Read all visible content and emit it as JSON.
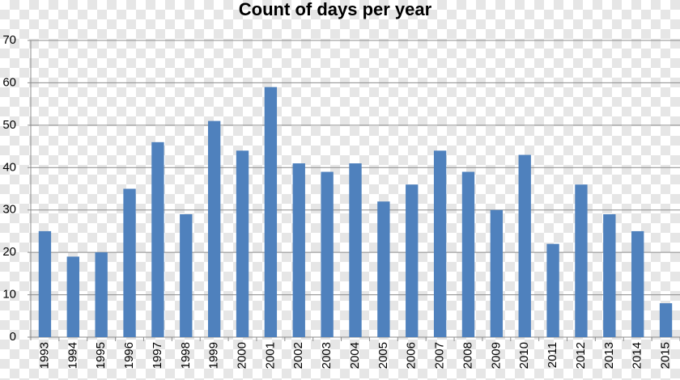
{
  "chart_data": {
    "type": "bar",
    "title": "Count of days per year",
    "categories": [
      "1993",
      "1994",
      "1995",
      "1996",
      "1997",
      "1998",
      "1999",
      "2000",
      "2001",
      "2002",
      "2003",
      "2004",
      "2005",
      "2006",
      "2007",
      "2008",
      "2009",
      "2010",
      "2011",
      "2012",
      "2013",
      "2014",
      "2015"
    ],
    "values": [
      25,
      19,
      20,
      35,
      46,
      29,
      51,
      44,
      59,
      41,
      39,
      41,
      32,
      36,
      44,
      39,
      30,
      43,
      22,
      36,
      29,
      25,
      8
    ],
    "color": "#4f81bd",
    "ylim": [
      0,
      70
    ],
    "yticks": [
      0,
      10,
      20,
      30,
      40,
      50,
      60,
      70
    ],
    "grid": true
  }
}
